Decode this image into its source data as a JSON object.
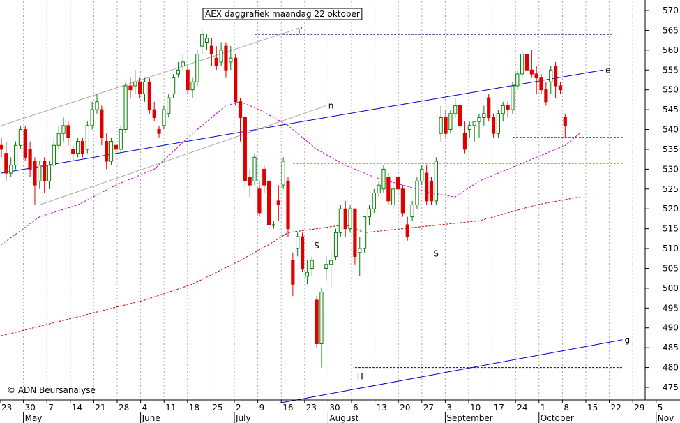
{
  "chart_data": {
    "type": "candlestick",
    "title": "AEX daggrafiek maandag 22 oktober",
    "copyright": "© ADN Beursanalyse",
    "ylim": [
      470,
      572
    ],
    "y_ticks": [
      475,
      480,
      485,
      490,
      495,
      500,
      505,
      510,
      515,
      520,
      525,
      530,
      535,
      540,
      545,
      550,
      555,
      560,
      565,
      570
    ],
    "grid": "vertical dotted at each week",
    "week_labels": [
      "23",
      "30",
      "7",
      "14",
      "21",
      "28",
      "4",
      "11",
      "18",
      "25",
      "2",
      "9",
      "16",
      "23",
      "30",
      "6",
      "13",
      "20",
      "27",
      "3",
      "10",
      "17",
      "24",
      "1",
      "8",
      "15",
      "22",
      "29",
      "5"
    ],
    "month_labels": [
      {
        "label": "May",
        "week_index": 1
      },
      {
        "label": "June",
        "week_index": 6
      },
      {
        "label": "July",
        "week_index": 10
      },
      {
        "label": "August",
        "week_index": 14
      },
      {
        "label": "September",
        "week_index": 19
      },
      {
        "label": "October",
        "week_index": 23
      },
      {
        "label": "Nov",
        "week_index": 28
      }
    ],
    "candles": [
      {
        "o": 536,
        "h": 538,
        "l": 533,
        "c": 535
      },
      {
        "o": 534,
        "h": 537,
        "l": 527,
        "c": 529
      },
      {
        "o": 529,
        "h": 533,
        "l": 528,
        "c": 531
      },
      {
        "o": 531,
        "h": 537,
        "l": 530,
        "c": 536
      },
      {
        "o": 536,
        "h": 541,
        "l": 535,
        "c": 540
      },
      {
        "o": 540,
        "h": 541,
        "l": 532,
        "c": 533
      },
      {
        "o": 535,
        "h": 537,
        "l": 528,
        "c": 530
      },
      {
        "o": 532,
        "h": 533,
        "l": 521,
        "c": 526
      },
      {
        "o": 527,
        "h": 532,
        "l": 525,
        "c": 531
      },
      {
        "o": 532,
        "h": 533,
        "l": 524,
        "c": 527
      },
      {
        "o": 527,
        "h": 532,
        "l": 525,
        "c": 531
      },
      {
        "o": 531,
        "h": 538,
        "l": 530,
        "c": 536
      },
      {
        "o": 536,
        "h": 541,
        "l": 535,
        "c": 539
      },
      {
        "o": 539,
        "h": 543,
        "l": 537,
        "c": 541
      },
      {
        "o": 541,
        "h": 542,
        "l": 536,
        "c": 538
      },
      {
        "o": 535,
        "h": 536,
        "l": 532,
        "c": 534
      },
      {
        "o": 534,
        "h": 538,
        "l": 533,
        "c": 537
      },
      {
        "o": 537,
        "h": 538,
        "l": 533,
        "c": 534
      },
      {
        "o": 535,
        "h": 542,
        "l": 534,
        "c": 541
      },
      {
        "o": 541,
        "h": 547,
        "l": 540,
        "c": 545
      },
      {
        "o": 545,
        "h": 549,
        "l": 544,
        "c": 547
      },
      {
        "o": 545,
        "h": 546,
        "l": 536,
        "c": 538
      },
      {
        "o": 537,
        "h": 539,
        "l": 530,
        "c": 532
      },
      {
        "o": 532,
        "h": 538,
        "l": 531,
        "c": 537
      },
      {
        "o": 536,
        "h": 537,
        "l": 533,
        "c": 535
      },
      {
        "o": 535,
        "h": 541,
        "l": 534,
        "c": 540
      },
      {
        "o": 540,
        "h": 552,
        "l": 539,
        "c": 551
      },
      {
        "o": 551,
        "h": 553,
        "l": 548,
        "c": 550
      },
      {
        "o": 551,
        "h": 555,
        "l": 549,
        "c": 552
      },
      {
        "o": 552,
        "h": 553,
        "l": 548,
        "c": 549
      },
      {
        "o": 549,
        "h": 553,
        "l": 547,
        "c": 552
      },
      {
        "o": 552,
        "h": 553,
        "l": 544,
        "c": 545
      },
      {
        "o": 545,
        "h": 547,
        "l": 542,
        "c": 543
      },
      {
        "o": 540,
        "h": 541,
        "l": 538,
        "c": 539
      },
      {
        "o": 541,
        "h": 546,
        "l": 540,
        "c": 545
      },
      {
        "o": 544,
        "h": 549,
        "l": 543,
        "c": 548
      },
      {
        "o": 549,
        "h": 554,
        "l": 548,
        "c": 553
      },
      {
        "o": 554,
        "h": 557,
        "l": 553,
        "c": 555
      },
      {
        "o": 556,
        "h": 559,
        "l": 555,
        "c": 557
      },
      {
        "o": 555,
        "h": 556,
        "l": 549,
        "c": 550
      },
      {
        "o": 550,
        "h": 553,
        "l": 548,
        "c": 552
      },
      {
        "o": 552,
        "h": 560,
        "l": 551,
        "c": 559
      },
      {
        "o": 561,
        "h": 565,
        "l": 559,
        "c": 564
      },
      {
        "o": 562,
        "h": 564,
        "l": 560,
        "c": 563
      },
      {
        "o": 561,
        "h": 563,
        "l": 556,
        "c": 559
      },
      {
        "o": 558,
        "h": 561,
        "l": 555,
        "c": 556
      },
      {
        "o": 557,
        "h": 562,
        "l": 556,
        "c": 560
      },
      {
        "o": 561,
        "h": 562,
        "l": 553,
        "c": 555
      },
      {
        "o": 557,
        "h": 561,
        "l": 555,
        "c": 558
      },
      {
        "o": 558,
        "h": 559,
        "l": 546,
        "c": 547
      },
      {
        "o": 547,
        "h": 548,
        "l": 537,
        "c": 543
      },
      {
        "o": 543,
        "h": 544,
        "l": 525,
        "c": 527
      },
      {
        "o": 528,
        "h": 530,
        "l": 523,
        "c": 526
      },
      {
        "o": 527,
        "h": 534,
        "l": 526,
        "c": 533
      },
      {
        "o": 525,
        "h": 527,
        "l": 518,
        "c": 519
      },
      {
        "o": 530,
        "h": 531,
        "l": 524,
        "c": 526
      },
      {
        "o": 527,
        "h": 528,
        "l": 515,
        "c": 516
      },
      {
        "o": 516,
        "h": 517,
        "l": 515,
        "c": 516
      },
      {
        "o": 522,
        "h": 526,
        "l": 517,
        "c": 521
      },
      {
        "o": 526,
        "h": 533,
        "l": 525,
        "c": 532
      },
      {
        "o": 527,
        "h": 528,
        "l": 513,
        "c": 515
      },
      {
        "o": 507,
        "h": 509,
        "l": 498,
        "c": 501
      },
      {
        "o": 510,
        "h": 514,
        "l": 508,
        "c": 513
      },
      {
        "o": 513,
        "h": 514,
        "l": 504,
        "c": 505
      },
      {
        "o": 503,
        "h": 507,
        "l": 501,
        "c": 504
      },
      {
        "o": 505,
        "h": 508,
        "l": 503,
        "c": 507
      },
      {
        "o": 497,
        "h": 498,
        "l": 485,
        "c": 486
      },
      {
        "o": 486,
        "h": 500,
        "l": 480,
        "c": 499
      },
      {
        "o": 505,
        "h": 508,
        "l": 502,
        "c": 506
      },
      {
        "o": 506,
        "h": 509,
        "l": 500,
        "c": 507
      },
      {
        "o": 508,
        "h": 515,
        "l": 507,
        "c": 514
      },
      {
        "o": 514,
        "h": 521,
        "l": 513,
        "c": 520
      },
      {
        "o": 520,
        "h": 522,
        "l": 513,
        "c": 515
      },
      {
        "o": 515,
        "h": 521,
        "l": 514,
        "c": 520
      },
      {
        "o": 520,
        "h": 520,
        "l": 506,
        "c": 508
      },
      {
        "o": 509,
        "h": 513,
        "l": 503,
        "c": 510
      },
      {
        "o": 510,
        "h": 518,
        "l": 509,
        "c": 518
      },
      {
        "o": 518,
        "h": 521,
        "l": 516,
        "c": 520
      },
      {
        "o": 520,
        "h": 525,
        "l": 519,
        "c": 524
      },
      {
        "o": 524,
        "h": 527,
        "l": 523,
        "c": 526
      },
      {
        "o": 525,
        "h": 531,
        "l": 524,
        "c": 530
      },
      {
        "o": 528,
        "h": 529,
        "l": 521,
        "c": 522
      },
      {
        "o": 521,
        "h": 526,
        "l": 520,
        "c": 525
      },
      {
        "o": 528,
        "h": 530,
        "l": 523,
        "c": 525
      },
      {
        "o": 525,
        "h": 526,
        "l": 518,
        "c": 519
      },
      {
        "o": 516,
        "h": 518,
        "l": 512,
        "c": 513
      },
      {
        "o": 518,
        "h": 522,
        "l": 517,
        "c": 521
      },
      {
        "o": 521,
        "h": 528,
        "l": 520,
        "c": 527
      },
      {
        "o": 527,
        "h": 531,
        "l": 526,
        "c": 530
      },
      {
        "o": 529,
        "h": 531,
        "l": 521,
        "c": 522
      },
      {
        "o": 527,
        "h": 528,
        "l": 521,
        "c": 522
      },
      {
        "o": 522,
        "h": 533,
        "l": 521,
        "c": 532
      },
      {
        "o": 539,
        "h": 546,
        "l": 537,
        "c": 543
      },
      {
        "o": 543,
        "h": 545,
        "l": 538,
        "c": 539
      },
      {
        "o": 540,
        "h": 545,
        "l": 539,
        "c": 544
      },
      {
        "o": 544,
        "h": 548,
        "l": 543,
        "c": 546
      },
      {
        "o": 546,
        "h": 546,
        "l": 539,
        "c": 541
      },
      {
        "o": 539,
        "h": 542,
        "l": 534,
        "c": 535
      },
      {
        "o": 540,
        "h": 542,
        "l": 538,
        "c": 541
      },
      {
        "o": 541,
        "h": 542,
        "l": 537,
        "c": 542
      },
      {
        "o": 542,
        "h": 544,
        "l": 538,
        "c": 543
      },
      {
        "o": 543,
        "h": 546,
        "l": 541,
        "c": 544
      },
      {
        "o": 548,
        "h": 549,
        "l": 542,
        "c": 543
      },
      {
        "o": 543,
        "h": 544,
        "l": 538,
        "c": 539
      },
      {
        "o": 539,
        "h": 545,
        "l": 538,
        "c": 544
      },
      {
        "o": 544,
        "h": 547,
        "l": 542,
        "c": 546
      },
      {
        "o": 546,
        "h": 547,
        "l": 543,
        "c": 545
      },
      {
        "o": 545,
        "h": 552,
        "l": 544,
        "c": 551
      },
      {
        "o": 551,
        "h": 555,
        "l": 550,
        "c": 554
      },
      {
        "o": 554,
        "h": 560,
        "l": 553,
        "c": 559
      },
      {
        "o": 559,
        "h": 561,
        "l": 554,
        "c": 555
      },
      {
        "o": 555,
        "h": 560,
        "l": 553,
        "c": 554
      },
      {
        "o": 554,
        "h": 556,
        "l": 549,
        "c": 553
      },
      {
        "o": 553,
        "h": 554,
        "l": 549,
        "c": 550
      },
      {
        "o": 550,
        "h": 552,
        "l": 546,
        "c": 547
      },
      {
        "o": 552,
        "h": 556,
        "l": 549,
        "c": 555
      },
      {
        "o": 556,
        "h": 557,
        "l": 548,
        "c": 551
      },
      {
        "o": 551,
        "h": 552,
        "l": 549,
        "c": 550
      },
      {
        "o": 543,
        "h": 544,
        "l": 538,
        "c": 541
      }
    ],
    "moving_averages": [
      {
        "name": "short",
        "color": "#cc00cc",
        "style": "dashed",
        "points": [
          [
            0,
            511
          ],
          [
            8,
            518
          ],
          [
            16,
            521
          ],
          [
            24,
            526
          ],
          [
            32,
            530
          ],
          [
            40,
            539
          ],
          [
            47,
            546
          ],
          [
            50,
            547
          ],
          [
            54,
            545
          ],
          [
            60,
            541
          ],
          [
            66,
            535
          ],
          [
            72,
            531
          ],
          [
            78,
            528
          ],
          [
            84,
            526
          ],
          [
            90,
            524
          ],
          [
            95,
            523
          ],
          [
            100,
            527
          ],
          [
            106,
            530
          ],
          [
            112,
            533
          ],
          [
            118,
            536
          ],
          [
            121,
            539
          ]
        ]
      },
      {
        "name": "long",
        "color": "#cc0000",
        "style": "dashed",
        "points": [
          [
            0,
            488
          ],
          [
            10,
            491
          ],
          [
            20,
            494
          ],
          [
            30,
            497
          ],
          [
            40,
            501
          ],
          [
            50,
            507
          ],
          [
            56,
            511
          ],
          [
            60,
            514
          ],
          [
            66,
            515
          ],
          [
            72,
            516
          ],
          [
            76,
            514
          ],
          [
            84,
            515
          ],
          [
            92,
            516
          ],
          [
            100,
            517
          ],
          [
            106,
            519
          ],
          [
            112,
            521
          ],
          [
            121,
            523
          ]
        ]
      }
    ],
    "trendlines": [
      {
        "label": "e",
        "color": "#0000cc",
        "style": "solid",
        "from": [
          0,
          529
        ],
        "to": [
          126,
          555
        ]
      },
      {
        "label": "g",
        "color": "#0000cc",
        "style": "solid",
        "from": [
          58,
          471
        ],
        "to": [
          130,
          487
        ]
      },
      {
        "label": "n'",
        "color": "#aaaaaa",
        "style": "solid",
        "from": [
          0,
          541
        ],
        "to": [
          61,
          565
        ]
      },
      {
        "label": "n",
        "color": "#aaaaaa",
        "style": "solid",
        "from": [
          8,
          521
        ],
        "to": [
          68,
          546
        ]
      }
    ],
    "horizontal_levels": [
      {
        "value": 564,
        "from": 53,
        "to": 128,
        "color": "#000080"
      },
      {
        "value": 538,
        "from": 107,
        "to": 130,
        "color": "#000080"
      },
      {
        "value": 531.5,
        "from": 61,
        "to": 130,
        "color": "#000080"
      },
      {
        "value": 480,
        "from": 74,
        "to": 130,
        "color": "#000080"
      }
    ],
    "annotations": [
      {
        "text": "S",
        "index": 66,
        "value": 510
      },
      {
        "text": "H",
        "index": 75,
        "value": 477
      },
      {
        "text": "S",
        "index": 91,
        "value": 508
      }
    ],
    "colors": {
      "up": "#008000",
      "down": "#e00000",
      "grid": "#aaaaaa",
      "trend": "#0000cc",
      "level": "#000080"
    }
  }
}
